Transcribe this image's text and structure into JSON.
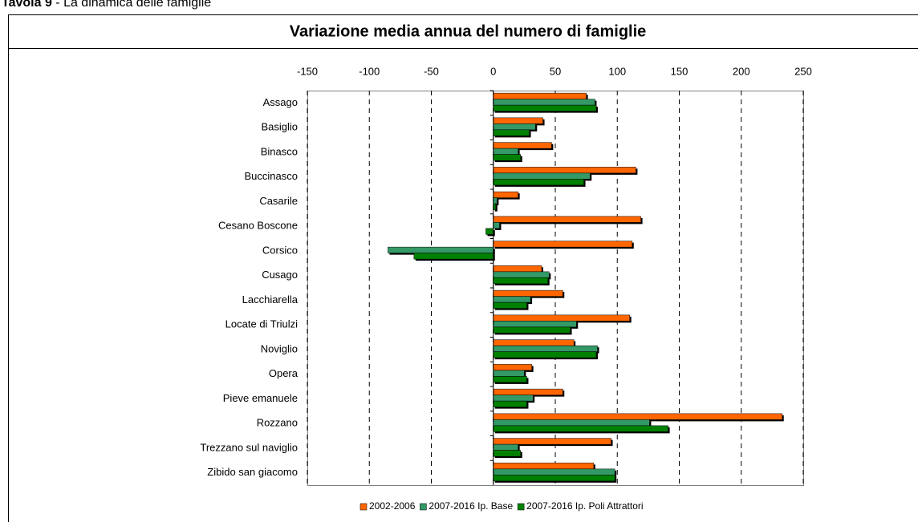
{
  "caption": {
    "label": "Tavola 9",
    "text": " - La dinamica delle famiglie"
  },
  "chart_data": {
    "type": "hbar",
    "title": "Variazione media annua del numero di famiglie",
    "categories": [
      "Assago",
      "Basiglio",
      "Binasco",
      "Buccinasco",
      "Casarile",
      "Cesano Boscone",
      "Corsico",
      "Cusago",
      "Lacchiarella",
      "Locate di Triulzi",
      "Noviglio",
      "Opera",
      "Pieve emanuele",
      "Rozzano",
      "Trezzano sul naviglio",
      "Zibido san giacomo"
    ],
    "series": [
      {
        "name": "2002-2006",
        "color": "#ff6600",
        "values": [
          75,
          40,
          47,
          115,
          20,
          119,
          112,
          39,
          56,
          110,
          65,
          31,
          56,
          233,
          95,
          81
        ]
      },
      {
        "name": "2007-2016 Ip. Base",
        "color": "#339966",
        "values": [
          82,
          34,
          20,
          78,
          3,
          5,
          -85,
          45,
          30,
          67,
          84,
          25,
          32,
          126,
          20,
          98
        ]
      },
      {
        "name": "2007-2016 Ip. Poli Attrattori",
        "color": "#008000",
        "values": [
          83,
          29,
          22,
          73,
          2,
          -6,
          -64,
          44,
          27,
          62,
          83,
          27,
          27,
          141,
          22,
          98
        ]
      }
    ],
    "xlim": [
      -150,
      250
    ],
    "xticks": [
      -150,
      -100,
      -50,
      0,
      50,
      100,
      150,
      200,
      250
    ],
    "grid": true,
    "legend": "bottom"
  }
}
